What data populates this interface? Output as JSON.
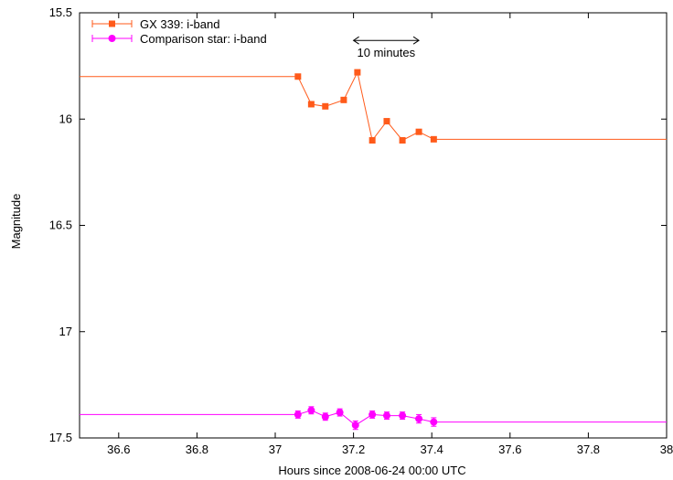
{
  "chart_data": {
    "type": "line",
    "title": "",
    "xlabel": "Hours since 2008-06-24 00:00 UTC",
    "ylabel": "Magnitude",
    "xlim": [
      36.5,
      38
    ],
    "ylim": [
      15.5,
      17.5
    ],
    "y_inverted": true,
    "x_ticks": [
      36.6,
      36.8,
      37,
      37.2,
      37.4,
      37.6,
      37.8,
      38
    ],
    "x_tick_labels": [
      "36.6",
      "36.8",
      "37",
      "37.2",
      "37.4",
      "37.6",
      "37.8",
      "38"
    ],
    "y_ticks": [
      15.5,
      16,
      16.5,
      17,
      17.5
    ],
    "y_tick_labels": [
      "15.5",
      "16",
      "16.5",
      "17",
      "17.5"
    ],
    "grid": false,
    "legend_position": "top-left",
    "annotation": {
      "text": "10 minutes",
      "x_start": 37.2,
      "x_end": 37.367,
      "y": 15.63
    },
    "series": [
      {
        "name": "GX 339: i-band",
        "color": "#ff5a1a",
        "marker": "square",
        "x": [
          37.058,
          37.092,
          37.128,
          37.175,
          37.21,
          37.248,
          37.285,
          37.325,
          37.367,
          37.405
        ],
        "y": [
          15.8,
          15.93,
          15.94,
          15.91,
          15.78,
          16.1,
          16.01,
          16.1,
          16.06,
          16.095
        ],
        "extension_left": {
          "x": [
            36.5,
            37.058
          ],
          "y": [
            15.8,
            15.8
          ]
        },
        "extension_right": {
          "x": [
            37.405,
            38.0
          ],
          "y": [
            16.095,
            16.095
          ]
        }
      },
      {
        "name": "Comparison star: i-band",
        "color": "#ff00ff",
        "marker": "circle",
        "x": [
          37.058,
          37.092,
          37.128,
          37.165,
          37.205,
          37.248,
          37.285,
          37.325,
          37.367,
          37.405
        ],
        "y": [
          17.39,
          17.37,
          17.4,
          17.38,
          17.44,
          17.39,
          17.395,
          17.395,
          17.41,
          17.425
        ],
        "yerr": [
          0.017,
          0.017,
          0.017,
          0.017,
          0.02,
          0.017,
          0.017,
          0.017,
          0.02,
          0.02
        ],
        "extension_left": {
          "x": [
            36.5,
            37.058
          ],
          "y": [
            17.39,
            17.39
          ]
        },
        "extension_right": {
          "x": [
            37.405,
            38.0
          ],
          "y": [
            17.425,
            17.425
          ]
        }
      }
    ]
  }
}
